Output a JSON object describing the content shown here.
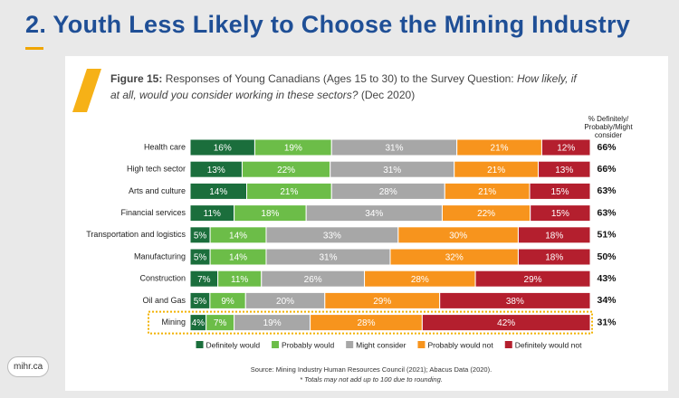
{
  "slide": {
    "title": "2. Youth Less Likely to Choose the Mining Industry",
    "logo": "mihr.ca"
  },
  "chart_data": {
    "type": "bar",
    "orientation": "horizontal",
    "stacked": true,
    "figure_label": "Figure 15:",
    "title": "Responses of Young Canadians (Ages 15 to 30) to the Survey Question:",
    "question": "How likely, if at all, would you consider working in these sectors?",
    "date": "(Dec 2020)",
    "categories": [
      "Health care",
      "High tech sector",
      "Arts and culture",
      "Financial services",
      "Transportation and logistics",
      "Manufacturing",
      "Construction",
      "Oil and Gas",
      "Mining"
    ],
    "series": [
      {
        "name": "Definitely would",
        "color": "#1b6e3c",
        "values": [
          16,
          13,
          14,
          11,
          5,
          5,
          7,
          5,
          4
        ],
        "value_labels": [
          "16%",
          "13%",
          "14%",
          "11%",
          "5%",
          "5%",
          "7%",
          "5%",
          "4%"
        ]
      },
      {
        "name": "Probably would",
        "color": "#6cbd48",
        "values": [
          19,
          22,
          21,
          18,
          14,
          14,
          11,
          9,
          7
        ],
        "value_labels": [
          "19%",
          "22%",
          "21%",
          "18%",
          "14%",
          "14%",
          "11%",
          "9%",
          "7%"
        ]
      },
      {
        "name": "Might consider",
        "color": "#a7a7a7",
        "values": [
          31,
          31,
          28,
          34,
          33,
          31,
          26,
          20,
          19
        ],
        "value_labels": [
          "31%",
          "31%",
          "28%",
          "34%",
          "33%",
          "31%",
          "26%",
          "20%",
          "19%"
        ]
      },
      {
        "name": "Probably would not",
        "color": "#f7941d",
        "values": [
          21,
          21,
          21,
          22,
          30,
          32,
          28,
          29,
          28
        ],
        "value_labels": [
          "21%",
          "21%",
          "21%",
          "22%",
          "30%",
          "32%",
          "28%",
          "29%",
          "28%"
        ]
      },
      {
        "name": "Definitely would not",
        "color": "#b41f2e",
        "values": [
          12,
          13,
          15,
          15,
          18,
          18,
          29,
          38,
          42
        ],
        "value_labels": [
          "12%",
          "13%",
          "15%",
          "15%",
          "18%",
          "18%",
          "29%",
          "38%",
          "42%"
        ]
      }
    ],
    "totals": {
      "title": [
        "% Definitely/",
        "Probably/Might",
        "consider"
      ],
      "values": [
        66,
        66,
        63,
        63,
        51,
        50,
        43,
        34,
        31
      ],
      "value_labels": [
        "66%",
        "66%",
        "63%",
        "63%",
        "51%",
        "50%",
        "43%",
        "34%",
        "31%"
      ]
    },
    "source": "Source: Mining Industry Human Resources Council (2021); Abacus Data (2020).",
    "note": "* Totals may not add up to 100 due to rounding."
  }
}
